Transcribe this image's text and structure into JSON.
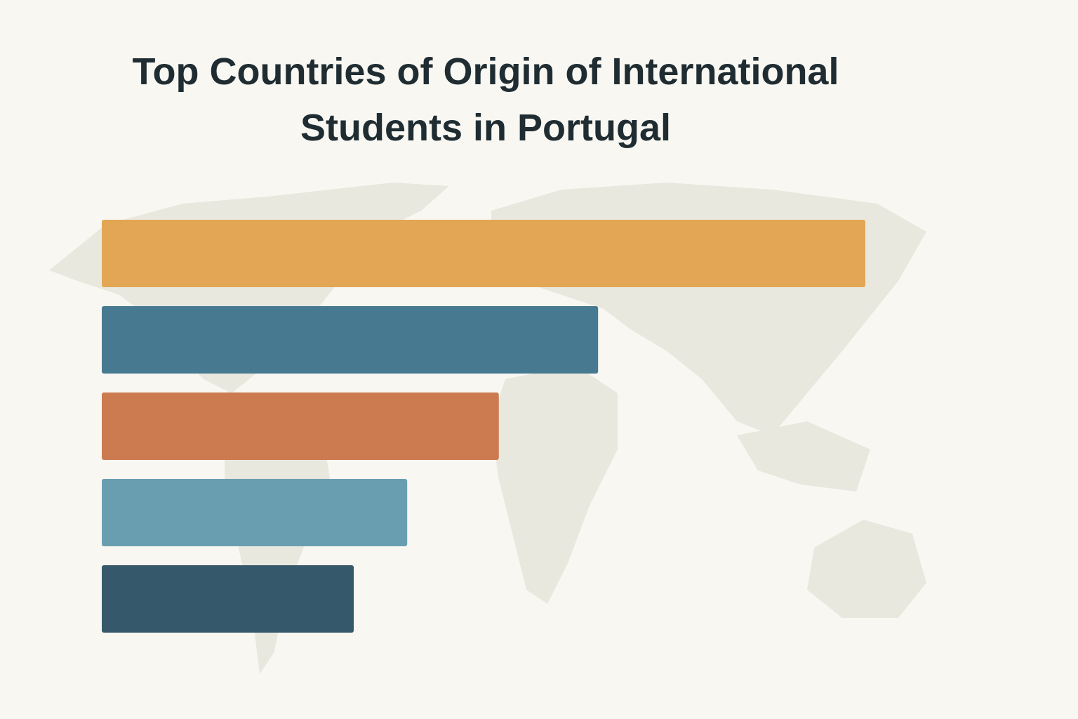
{
  "chart_data": {
    "type": "bar",
    "orientation": "horizontal",
    "title": "Top Countries of Origin of International Students in Portugal",
    "categories": [
      null,
      null,
      null,
      null,
      null
    ],
    "values": [
      100,
      65,
      52,
      40,
      33
    ],
    "colors": [
      "#e2a654",
      "#477a91",
      "#cc7a50",
      "#699eb1",
      "#35596b"
    ]
  }
}
